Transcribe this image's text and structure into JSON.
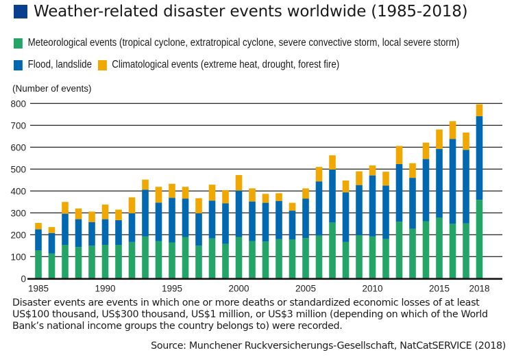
{
  "chart_data": {
    "type": "bar",
    "stacked": true,
    "title": "Weather-related disaster events worldwide (1985-2018)",
    "ylabel": "(Number of events)",
    "xlabel": "",
    "ylim": [
      0,
      800
    ],
    "yticks": [
      0,
      100,
      200,
      300,
      400,
      500,
      600,
      700,
      800
    ],
    "xtick_labels": [
      "1985",
      "1990",
      "1995",
      "2000",
      "2005",
      "2010",
      "2015",
      "2018"
    ],
    "grid": true,
    "legend_position": "top",
    "categories": [
      1985,
      1986,
      1987,
      1988,
      1989,
      1990,
      1991,
      1992,
      1993,
      1994,
      1995,
      1996,
      1997,
      1998,
      1999,
      2000,
      2001,
      2002,
      2003,
      2004,
      2005,
      2006,
      2007,
      2008,
      2009,
      2010,
      2011,
      2012,
      2013,
      2014,
      2015,
      2016,
      2017,
      2018
    ],
    "series": [
      {
        "name": "Meteorological events (tropical cyclone, extratropical cyclone, severe convective storm, local severe storm)",
        "color": "#22a567",
        "values": [
          129,
          114,
          154,
          144,
          150,
          154,
          154,
          167,
          192,
          171,
          165,
          190,
          150,
          183,
          158,
          190,
          171,
          169,
          180,
          179,
          185,
          196,
          256,
          167,
          198,
          192,
          181,
          260,
          227,
          262,
          279,
          250,
          252,
          360
        ]
      },
      {
        "name": "Flood, landslide",
        "color": "#0068b0",
        "values": [
          96,
          94,
          142,
          127,
          108,
          117,
          113,
          131,
          214,
          176,
          204,
          175,
          148,
          173,
          186,
          212,
          181,
          177,
          174,
          131,
          180,
          248,
          242,
          227,
          229,
          279,
          244,
          263,
          233,
          284,
          313,
          388,
          336,
          382
        ]
      },
      {
        "name": "Climatological events (extreme heat, drought, forest fire)",
        "color": "#f0a800",
        "values": [
          29,
          27,
          54,
          49,
          48,
          67,
          48,
          73,
          46,
          72,
          64,
          54,
          69,
          73,
          60,
          71,
          60,
          41,
          36,
          36,
          47,
          66,
          65,
          54,
          63,
          46,
          63,
          83,
          67,
          75,
          89,
          81,
          79,
          54
        ]
      }
    ]
  },
  "header": {
    "title": "Weather-related disaster events worldwide (1985-2018)",
    "title_square_color": "#0a3e8e"
  },
  "legend": {
    "items": [
      {
        "label": "Meteorological events (tropical cyclone, extratropical cyclone, severe convective storm, local severe storm)",
        "color": "#22a567"
      },
      {
        "label": "Flood, landslide",
        "color": "#0068b0"
      },
      {
        "label": "Climatological events (extreme heat, drought, forest fire)",
        "color": "#f0a800"
      }
    ]
  },
  "footer": {
    "note": "Disaster events are events in which one or more deaths or standardized economic losses of at least US$100 thousand, US$300 thousand, US$1 million, or US$3 million (depending on which of the World Bank’s national income groups the country belongs to) were recorded.",
    "source": "Source: Munchener Ruckversicherungs-Gesellschaft, NatCatSERVICE (2018)"
  }
}
